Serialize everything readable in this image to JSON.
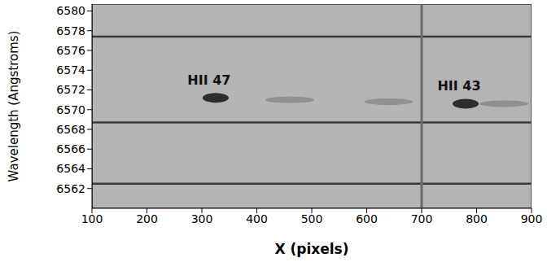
{
  "chart_data": {
    "type": "image",
    "x_label": "X (pixels)",
    "y_label": "Wavelength (Angstroms)",
    "xlim": [
      100,
      900
    ],
    "xticks": [
      100,
      200,
      300,
      400,
      500,
      600,
      700,
      800,
      900
    ],
    "ylim": [
      6560,
      6580.7
    ],
    "yticks": [
      6562,
      6564,
      6566,
      6568,
      6570,
      6572,
      6574,
      6576,
      6578,
      6580
    ],
    "color": "#b4b4b4",
    "sky_lines": {
      "y": [
        6577.4,
        6568.7,
        6562.5
      ],
      "color": "#3a3a3a"
    },
    "column_line": {
      "x": 700,
      "color": "#6a6a6a"
    },
    "sources": {
      "color": "#151515",
      "points": [
        {
          "label": "HII 47",
          "x": 325,
          "y": 6571.2
        },
        {
          "label": "HII 43",
          "x": 780,
          "y": 6570.6
        }
      ]
    },
    "faint_emission": {
      "color": "#7a7a7a",
      "x": [
        460,
        640,
        850
      ],
      "y": [
        6571,
        6570.8,
        6570.6
      ]
    }
  }
}
